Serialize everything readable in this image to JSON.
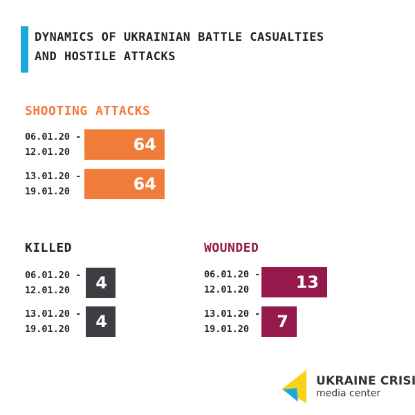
{
  "title": {
    "line1": "DYNAMICS OF UKRAINIAN BATTLE CASUALTIES",
    "line2": "AND HOSTILE ATTACKS"
  },
  "colors": {
    "accent_bar": "#1ea7dd",
    "shooting": "#f07c3a",
    "killed": "#3d3d44",
    "wounded": "#95194b"
  },
  "chart_data": [
    {
      "type": "bar",
      "title": "SHOOTING ATTACKS",
      "categories": [
        [
          "06.01.20 -",
          "12.01.20"
        ],
        [
          "13.01.20 -",
          "19.01.20"
        ]
      ],
      "values": [
        64,
        64
      ]
    },
    {
      "type": "bar",
      "title": "KILLED",
      "categories": [
        [
          "06.01.20 -",
          "12.01.20"
        ],
        [
          "13.01.20 -",
          "19.01.20"
        ]
      ],
      "values": [
        4,
        4
      ]
    },
    {
      "type": "bar",
      "title": "WOUNDED",
      "categories": [
        [
          "06.01.20 -",
          "12.01.20"
        ],
        [
          "13.01.20 -",
          "19.01.20"
        ]
      ],
      "values": [
        13,
        7
      ]
    }
  ],
  "logo": {
    "line1": "UKRAINE CRISIS",
    "line2": "media center",
    "icon": "ukraine-crisis-flag-icon"
  }
}
